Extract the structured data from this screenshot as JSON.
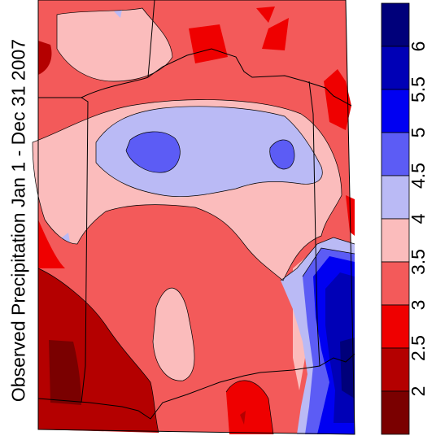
{
  "map": {
    "title": "Observed Precipitation Jan 1 - Dec 31 2007"
  },
  "legend": {
    "bins": [
      {
        "color": "#00007a"
      },
      {
        "color": "#0000b6"
      },
      {
        "color": "#0000f2"
      },
      {
        "color": "#5c5cf5"
      },
      {
        "color": "#babaf5"
      },
      {
        "color": "#fbbcbc"
      },
      {
        "color": "#f35a5a"
      },
      {
        "color": "#ef0000"
      },
      {
        "color": "#b40000"
      },
      {
        "color": "#7a0000"
      }
    ],
    "tick_labels": [
      "2",
      "2.5",
      "3",
      "3.5",
      "4",
      "4.5",
      "5",
      "5.5",
      "6"
    ]
  },
  "colors": {
    "lt2": "#7a0000",
    "c2_25": "#b40000",
    "c25_3": "#ef0000",
    "c3_35": "#f35a5a",
    "c35_4": "#fbbcbc",
    "c4_45": "#babaf5",
    "c45_5": "#5c5cf5",
    "c5_55": "#0000f2",
    "c55_6": "#0000b6",
    "gt6": "#00007a"
  }
}
